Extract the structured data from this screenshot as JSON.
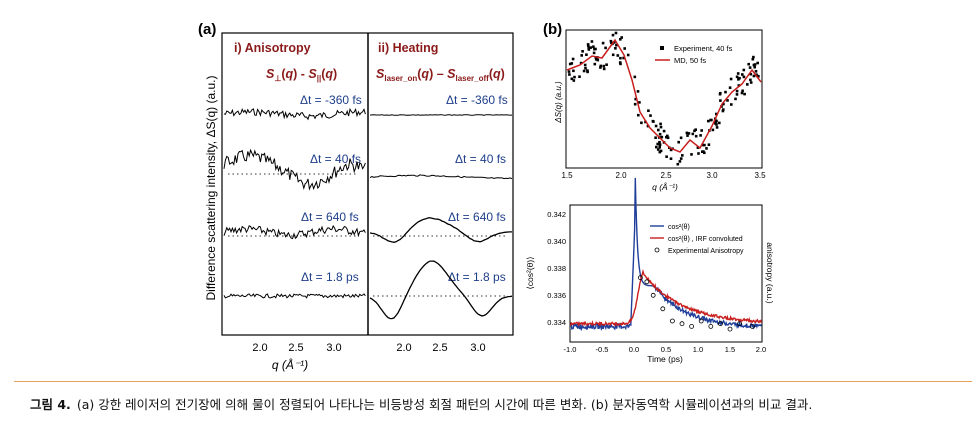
{
  "panel_a": {
    "label": "(a)",
    "left_panel": {
      "title": "i) Anisotropy"
    },
    "right_panel": {
      "title": "ii) Heating"
    },
    "y_axis_label": "Difference scattering intensity, ΔS(q) (a.u.)",
    "x_axis_label": "q (Å⁻¹)",
    "delays": [
      "Δt = -360 fs",
      "Δt = 40 fs",
      "Δt = 640 fs",
      "Δt = 1.8 ps"
    ],
    "x_ticks": [
      "2.0",
      "2.5",
      "3.0"
    ]
  },
  "panel_b": {
    "label": "(b)",
    "top": {
      "y_axis_label": "ΔS(q) (a.u.)",
      "x_axis_label": "q (Å⁻¹)",
      "x_ticks": [
        "1.5",
        "2.0",
        "2.5",
        "3.0",
        "3.5"
      ],
      "legend": [
        "Experiment, 40 fs",
        "MD, 50 fs"
      ]
    },
    "bottom": {
      "y_axis_label": "⟨cos²(θ)⟩",
      "y2_axis_label": "anisotropy (a.u.)",
      "x_axis_label": "Time (ps)",
      "x_ticks": [
        "-1.0",
        "-0.5",
        "0.0",
        "0.5",
        "1.0",
        "1.5",
        "2.0"
      ],
      "y_ticks": [
        "0.342",
        "0.340",
        "0.338",
        "0.336",
        "0.334"
      ],
      "legend": [
        "cos²(θ)",
        "cos²(θ) , IRF convoluted",
        "Experimental Anisotropy"
      ]
    }
  },
  "caption": {
    "label": "그림 4.",
    "text": "(a) 강한 레이저의 전기장에 의해 물이 정렬되어 나타나는 비등방성 회절 패턴의 시간에 따른 변화. (b) 분자동역학 시뮬레이션과의 비교 결과."
  },
  "colors": {
    "delay_text": "#1f3f8a",
    "panel_title": "#8b1a1a",
    "md_line": "#c81e1e",
    "cos_line": "#1f3f9a",
    "caption_rule": "#e8a25a"
  }
}
